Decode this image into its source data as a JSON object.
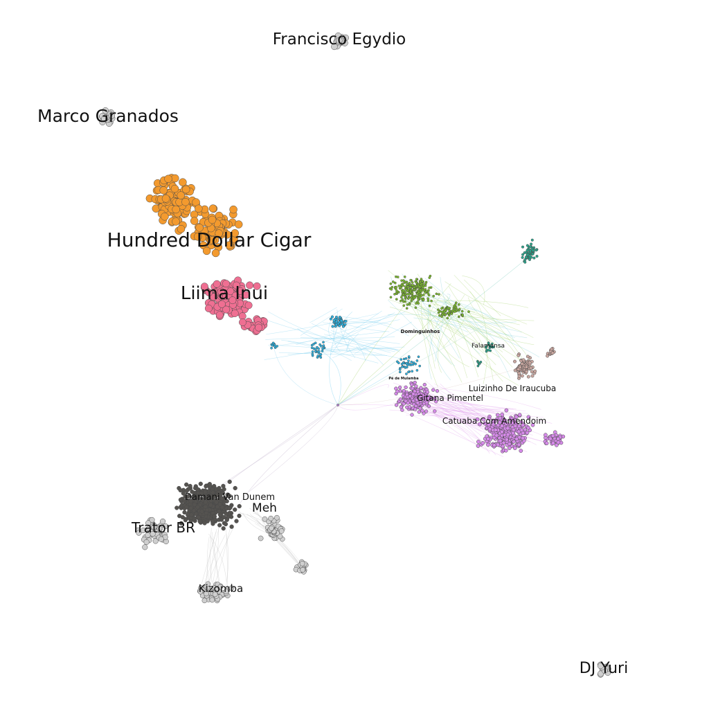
{
  "graph": {
    "clusters": [
      {
        "id": "francisco-egydio",
        "label": "Francisco Egydio",
        "color": "#cfcfcf"
      },
      {
        "id": "marco-granados",
        "label": "Marco Granados",
        "color": "#cfcfcf"
      },
      {
        "id": "hundred-dollar-cigar",
        "label": "Hundred Dollar Cigar",
        "color": "#f39a2e"
      },
      {
        "id": "liima-inui",
        "label": "Liima Inui",
        "color": "#ef6f92"
      },
      {
        "id": "dominguinhos",
        "label": "Dominguinhos",
        "color": "#7dbf2a"
      },
      {
        "id": "falamansa",
        "label": "Falamansa",
        "color": "#2aa88f"
      },
      {
        "id": "pe-de-mulamba",
        "label": "Pé de Mulamba",
        "color": "#29b5e6"
      },
      {
        "id": "luizinho-de-iraucuba",
        "label": "Luizinho De Iraucuba",
        "color": "#c9a7a0"
      },
      {
        "id": "gitana-pimentel",
        "label": "Gitana Pimentel",
        "color": "#d58ae8"
      },
      {
        "id": "catuaba-com-amendoim",
        "label": "Catuaba Com Amendoim",
        "color": "#d58ae8"
      },
      {
        "id": "damani-van-dunem",
        "label": "Damani Van Dunem",
        "color": "#555350"
      },
      {
        "id": "meh",
        "label": "Meh",
        "color": "#cfcfcf"
      },
      {
        "id": "trator-br",
        "label": "Trator BR",
        "color": "#cfcfcf"
      },
      {
        "id": "kizomba",
        "label": "Kizomba",
        "color": "#cfcfcf"
      },
      {
        "id": "dj-yuri",
        "label": "DJ Yuri",
        "color": "#cfcfcf"
      }
    ]
  }
}
